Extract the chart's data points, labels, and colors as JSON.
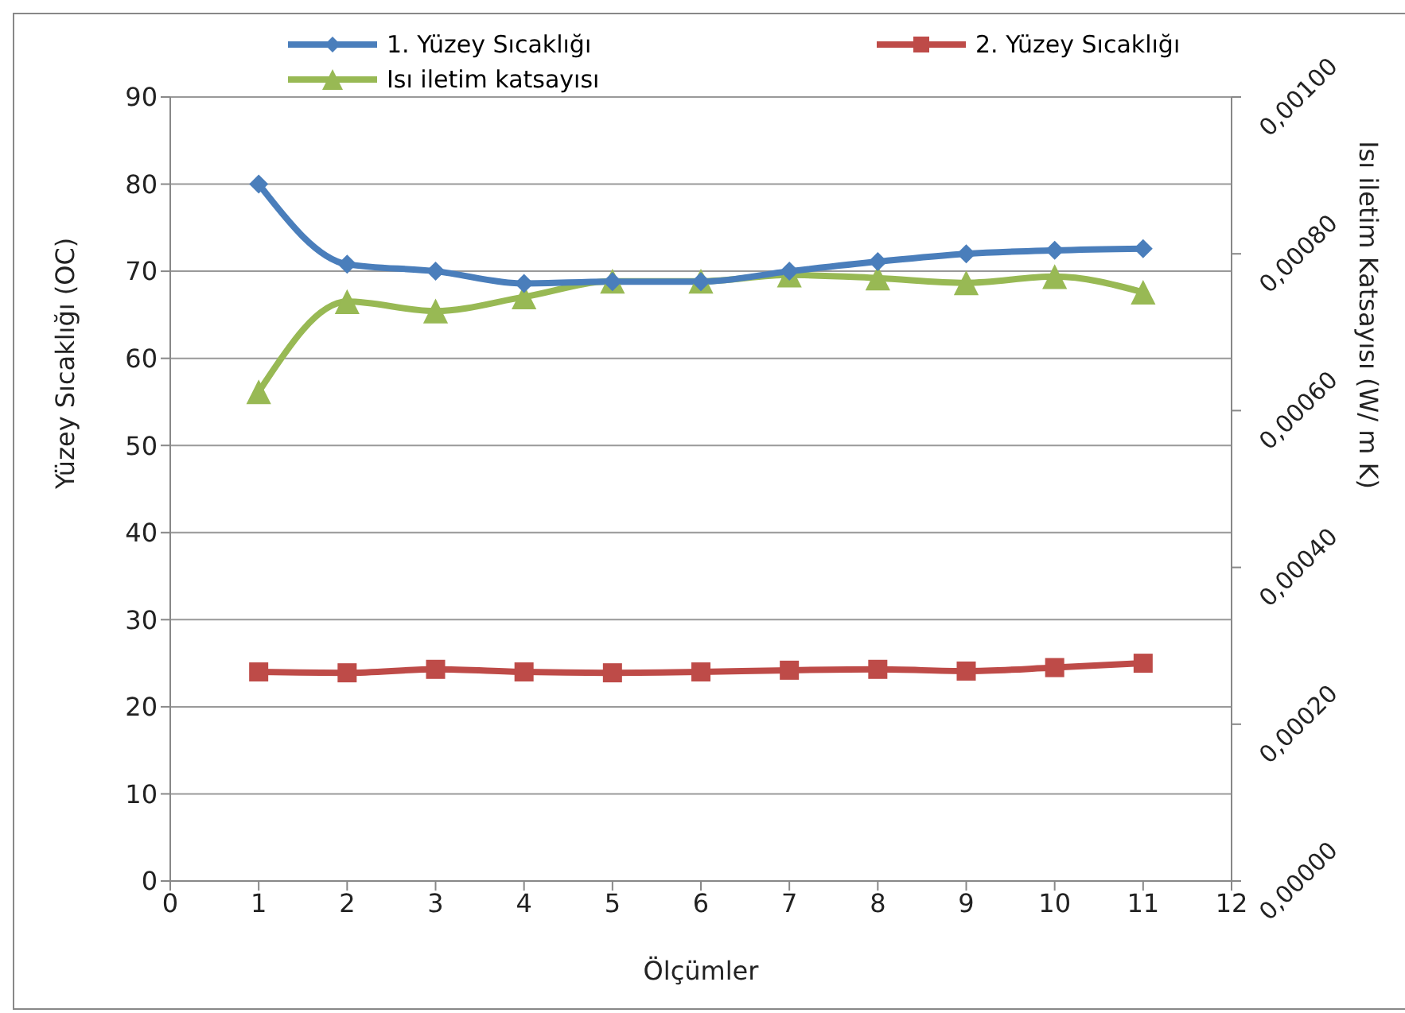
{
  "chart_data": {
    "type": "line",
    "xlabel": "Ölçümler",
    "ylabel": "Yüzey Sıcaklığı  (OC)",
    "y2label": "Isı iletim Katsayısı  (W/ m K)",
    "x": [
      1,
      2,
      3,
      4,
      5,
      6,
      7,
      8,
      9,
      10,
      11
    ],
    "series": [
      {
        "name": "1. Yüzey Sıcaklığı",
        "color": "#4a7ebb",
        "marker": "diamond",
        "values": [
          80,
          70.8,
          70,
          68.6,
          68.8,
          68.8,
          70,
          71.1,
          72,
          72.4,
          72.6
        ]
      },
      {
        "name": "2. Yüzey Sıcaklığı",
        "color": "#be4b48",
        "marker": "square",
        "values": [
          24,
          23.9,
          24.3,
          24,
          23.9,
          24,
          24.2,
          24.3,
          24.1,
          24.5,
          25
        ]
      },
      {
        "name": "Isı iletim katsayısı",
        "color": "#98b954",
        "marker": "triangle",
        "axis": "y2",
        "values": [
          0.000624,
          0.000739,
          0.000727,
          0.000745,
          0.000765,
          0.000765,
          0.000773,
          0.000769,
          0.000763,
          0.000771,
          0.000751
        ]
      }
    ],
    "xlim": [
      0,
      12
    ],
    "xticks": [
      0,
      1,
      2,
      3,
      4,
      5,
      6,
      7,
      8,
      9,
      10,
      11,
      12
    ],
    "ylim": [
      0,
      90
    ],
    "yticks": [
      0,
      10,
      20,
      30,
      40,
      50,
      60,
      70,
      80,
      90
    ],
    "y2lim": [
      0,
      0.001
    ],
    "y2ticks": [
      {
        "value": 0,
        "label": "0,00000"
      },
      {
        "value": 0.0002,
        "label": "0,00020"
      },
      {
        "value": 0.0004,
        "label": "0,00040"
      },
      {
        "value": 0.0006,
        "label": "0,00060"
      },
      {
        "value": 0.0008,
        "label": "0,00080"
      },
      {
        "value": 0.001,
        "label": "0,00100"
      }
    ],
    "grid": "y",
    "legend": "top",
    "line_style": "solid"
  }
}
